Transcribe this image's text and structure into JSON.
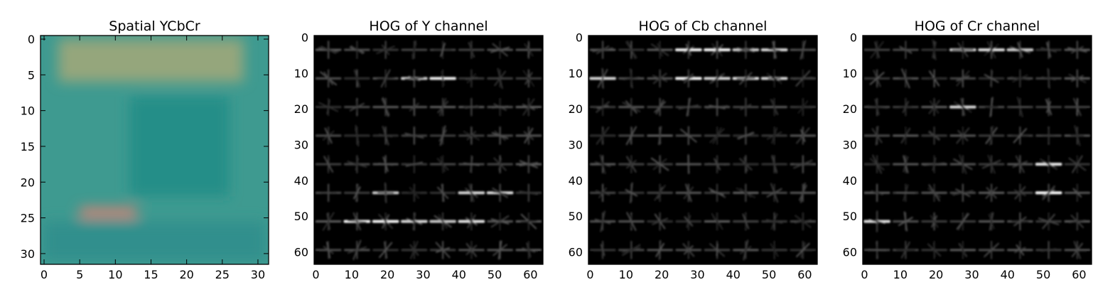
{
  "chart_data": [
    {
      "type": "heatmap",
      "title": "Spatial YCbCr",
      "xlim": [
        0,
        31
      ],
      "ylim": [
        0,
        31
      ],
      "xticks": [
        0,
        5,
        10,
        15,
        20,
        25,
        30
      ],
      "yticks": [
        0,
        5,
        10,
        15,
        20,
        25,
        30
      ],
      "image": {
        "kind": "photo",
        "base_color": "#3e9a90",
        "regions": [
          {
            "label": "tan band",
            "x": [
              2,
              28
            ],
            "y": [
              0,
              6
            ],
            "color": "#a4a878"
          },
          {
            "label": "dark teal center",
            "x": [
              12,
              26
            ],
            "y": [
              8,
              22
            ],
            "color": "#1e8c86"
          },
          {
            "label": "salmon strip",
            "x": [
              5,
              13
            ],
            "y": [
              23.5,
              25
            ],
            "color": "#ea7f72"
          },
          {
            "label": "bottom band",
            "x": [
              0,
              31
            ],
            "y": [
              25.5,
              31
            ],
            "color": "#2f8d8c"
          }
        ]
      }
    },
    {
      "type": "heatmap",
      "title": "HOG of Y channel",
      "xlim": [
        0,
        63
      ],
      "ylim": [
        0,
        63
      ],
      "xticks": [
        0,
        10,
        20,
        30,
        40,
        50,
        60
      ],
      "yticks": [
        0,
        10,
        20,
        30,
        40,
        50,
        60
      ],
      "grid_cells": 8,
      "cell_size": 8,
      "strong_cells": [
        [
          6,
          1
        ],
        [
          6,
          2
        ],
        [
          6,
          3
        ],
        [
          6,
          4
        ],
        [
          6,
          5
        ],
        [
          5,
          2
        ],
        [
          5,
          5
        ],
        [
          5,
          6
        ],
        [
          1,
          3
        ],
        [
          1,
          4
        ]
      ]
    },
    {
      "type": "heatmap",
      "title": "HOG of Cb channel",
      "xlim": [
        0,
        63
      ],
      "ylim": [
        0,
        63
      ],
      "xticks": [
        0,
        10,
        20,
        30,
        40,
        50,
        60
      ],
      "yticks": [
        0,
        10,
        20,
        30,
        40,
        50,
        60
      ],
      "grid_cells": 8,
      "cell_size": 8,
      "strong_cells": [
        [
          0,
          4
        ],
        [
          0,
          5
        ],
        [
          0,
          3
        ],
        [
          0,
          6
        ],
        [
          1,
          0
        ],
        [
          1,
          3
        ],
        [
          1,
          4
        ],
        [
          1,
          5
        ],
        [
          1,
          6
        ]
      ]
    },
    {
      "type": "heatmap",
      "title": "HOG of Cr channel",
      "xlim": [
        0,
        63
      ],
      "ylim": [
        0,
        63
      ],
      "xticks": [
        0,
        10,
        20,
        30,
        40,
        50,
        60
      ],
      "yticks": [
        0,
        10,
        20,
        30,
        40,
        50,
        60
      ],
      "grid_cells": 8,
      "cell_size": 8,
      "strong_cells": [
        [
          0,
          4
        ],
        [
          0,
          5
        ],
        [
          0,
          3
        ],
        [
          5,
          6
        ],
        [
          4,
          6
        ],
        [
          6,
          0
        ],
        [
          2,
          3
        ]
      ]
    }
  ]
}
